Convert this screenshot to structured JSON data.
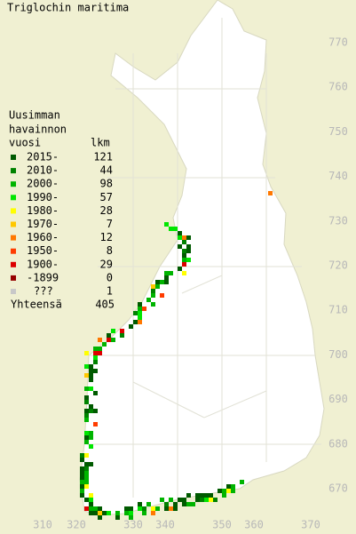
{
  "title": "Triglochin maritima",
  "legend": {
    "heading": [
      "Uusimman",
      "havainnon",
      "vuosi"
    ],
    "count_heading": "lkm",
    "rows": [
      {
        "label": "2015-",
        "count": 121,
        "color": "#005a00"
      },
      {
        "label": "2010-",
        "count": 44,
        "color": "#008200"
      },
      {
        "label": "2000-",
        "count": 98,
        "color": "#00b400"
      },
      {
        "label": "1990-",
        "count": 57,
        "color": "#00e600"
      },
      {
        "label": "1980-",
        "count": 28,
        "color": "#ffff00"
      },
      {
        "label": "1970-",
        "count": 7,
        "color": "#ffc800"
      },
      {
        "label": "1960-",
        "count": 12,
        "color": "#ff7800"
      },
      {
        "label": "1950-",
        "count": 8,
        "color": "#ff3c00"
      },
      {
        "label": "1900-",
        "count": 29,
        "color": "#dc0000"
      },
      {
        "label": "-1899",
        "count": 0,
        "color": "#960000"
      },
      {
        "label": "???",
        "count": 1,
        "color": "#c8c8c8"
      }
    ],
    "total_label": "Yhteensä",
    "total": 405
  },
  "x_labels": [
    310,
    320,
    330,
    340,
    350,
    360,
    370
  ],
  "y_labels": [
    770,
    760,
    750,
    740,
    730,
    720,
    710,
    700,
    690,
    680,
    670
  ]
}
